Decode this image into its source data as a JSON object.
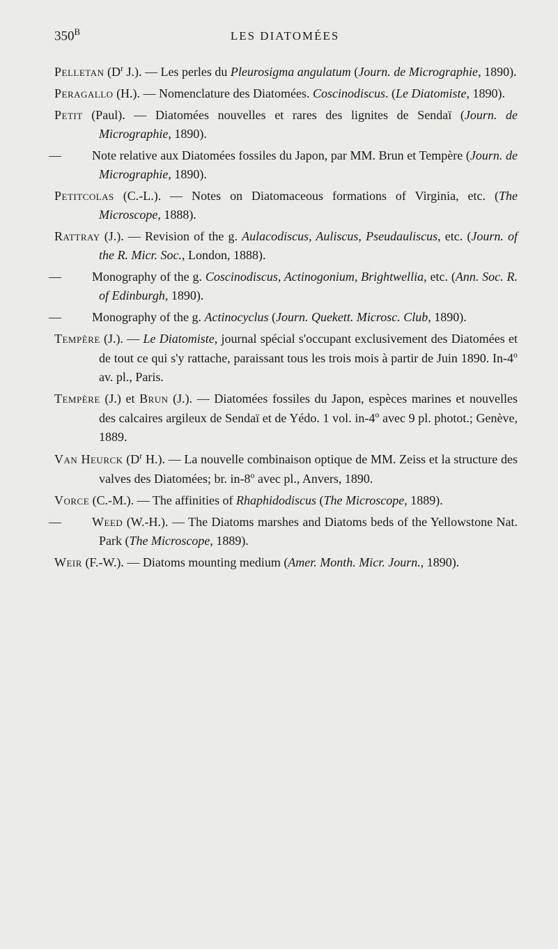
{
  "header": {
    "page_number": "350",
    "page_superscript": "B",
    "title": "LES DIATOMÉES"
  },
  "entries": [
    {
      "type": "main",
      "author": "Pelletan",
      "author_suffix": " (D",
      "author_sup": "r",
      "author_close": " J.). — Les perles du ",
      "italic1": "Pleurosigma angulatum",
      "mid1": " (",
      "italic2": "Journ. de Micrographie",
      "tail": ", 1890)."
    },
    {
      "type": "main",
      "author": "Peragallo",
      "plain1": " (H.). — Nomenclature des Diatomées. ",
      "italic1": "Coscinodiscus",
      "mid1": ". (",
      "italic2": "Le Diatomiste",
      "tail": ", 1890)."
    },
    {
      "type": "main",
      "author": "Petit",
      "plain1": " (Paul). — Diatomées nouvelles et rares des lignites de Sendaï (",
      "italic1": "Journ. de Micrographie",
      "tail": ", 1890)."
    },
    {
      "type": "sub",
      "plain1": "Note relative aux Diatomées fossiles du Japon, par MM. Brun et Tempère (",
      "italic1": "Journ. de Micrographie",
      "tail": ", 1890)."
    },
    {
      "type": "main",
      "author": "Petitcolas",
      "plain1": " (C.-L.). — Notes on Diatomaceous formations of Virginia, etc. (",
      "italic1": "The Microscope",
      "tail": ", 1888)."
    },
    {
      "type": "main",
      "author": "Rattray",
      "plain1": " (J.). — Revision of the g. ",
      "italic1": "Aulacodiscus, Auliscus, Pseudauliscus",
      "mid1": ", etc. (",
      "italic2": "Journ. of the R. Micr. Soc.",
      "tail": ", London, 1888)."
    },
    {
      "type": "sub",
      "plain1": "Monography of the g. ",
      "italic1": "Coscinodiscus, Actinogonium, Brightwellia",
      "mid1": ", etc. (",
      "italic2": "Ann. Soc. R. of Edinburgh",
      "tail": ", 1890)."
    },
    {
      "type": "sub",
      "plain1": "Monography of the g. ",
      "italic1": "Actinocyclus",
      "mid1": " (",
      "italic2": "Journ. Quekett. Microsc. Club",
      "tail": ", 1890)."
    },
    {
      "type": "main",
      "author": "Tempère",
      "plain1": " (J.). — ",
      "italic1": "Le Diatomiste",
      "mid1": ", journal spécial s'occupant exclusivement des Diatomées et de tout ce qui s'y rattache, paraissant tous les trois mois à partir de Juin 1890. In-4",
      "sup1": "o",
      "tail": " av. pl., Paris."
    },
    {
      "type": "main",
      "author": "Tempère",
      "plain1": " (J.) et ",
      "author2": "Brun",
      "plain2": " (J.). — Diatomées fossiles du Japon, espèces marines et nouvelles des calcaires argileux de Sendaï et de Yédo. 1 vol. in-4",
      "sup1": "o",
      "tail": " avec 9 pl. photot.; Genève, 1889."
    },
    {
      "type": "main",
      "author": "Van Heurck",
      "plain1": " (D",
      "sup1": "r",
      "plain2": " H.). — La nouvelle combinaison optique de MM. Zeiss et la structure des valves des Diatomées; br. in-8",
      "sup2": "o",
      "tail": " avec pl., Anvers, 1890."
    },
    {
      "type": "main",
      "author": "Vorce",
      "plain1": " (C.-M.). — The affinities of ",
      "italic1": "Rhaphidodiscus",
      "mid1": " (",
      "italic2": "The Microscope",
      "tail": ", 1889)."
    },
    {
      "type": "sub",
      "author": "Weed",
      "plain1": " (W.-H.). — The Diatoms marshes and Diatoms beds of the Yellowstone Nat. Park (",
      "italic1": "The Microscope",
      "tail": ", 1889)."
    },
    {
      "type": "main",
      "author": "Weir",
      "plain1": " (F.-W.). — Diatoms mounting medium (",
      "italic1": "Amer. Month. Micr. Journ.",
      "tail": ", 1890)."
    }
  ]
}
